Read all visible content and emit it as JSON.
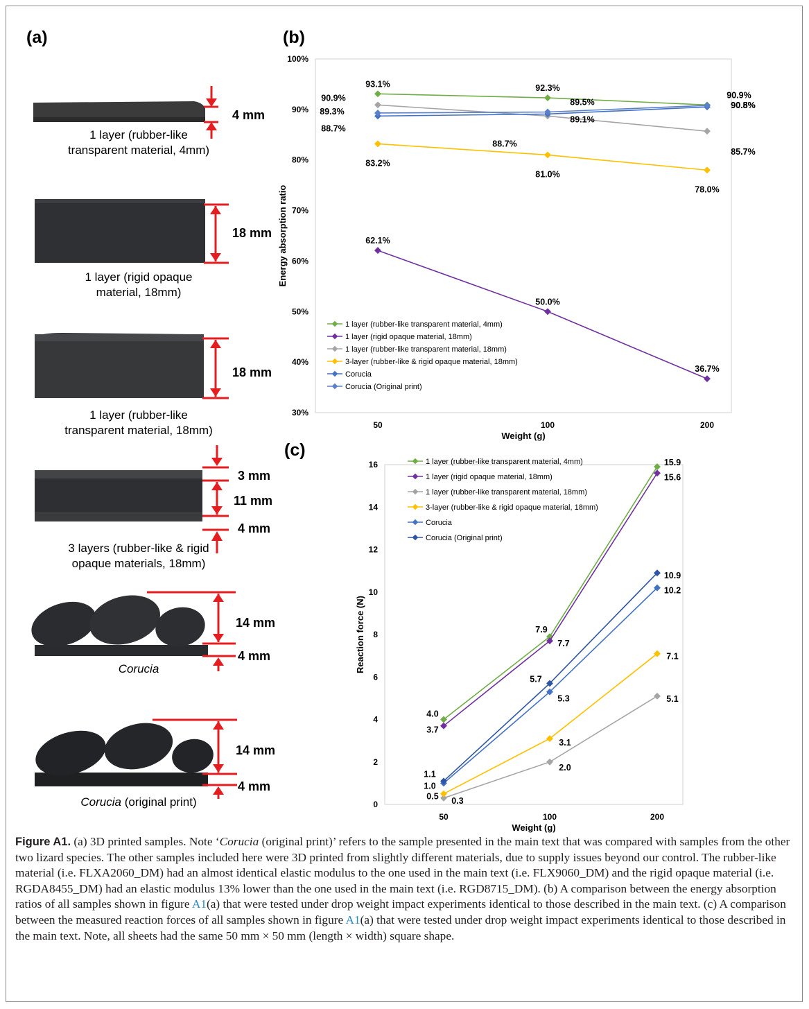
{
  "panels": {
    "a": "(a)",
    "b": "(b)",
    "c": "(c)"
  },
  "samples": [
    {
      "caption_lines": [
        "1 layer (rubber-like",
        "transparent material, 4mm)"
      ],
      "dims": [
        "4 mm"
      ]
    },
    {
      "caption_lines": [
        "1 layer (rigid opaque",
        "material, 18mm)"
      ],
      "dims": [
        "18 mm"
      ]
    },
    {
      "caption_lines": [
        "1 layer (rubber-like",
        "transparent material, 18mm)"
      ],
      "dims": [
        "18 mm"
      ]
    },
    {
      "caption_lines": [
        "3 layers (rubber-like & rigid",
        "opaque materials, 18mm)"
      ],
      "dims": [
        "3 mm",
        "11 mm",
        "4 mm"
      ]
    },
    {
      "caption_lines": [
        "Corucia"
      ],
      "dims": [
        "14 mm",
        "4 mm"
      ]
    },
    {
      "caption_parts": [
        "Corucia",
        " (original print)"
      ],
      "dims": [
        "14 mm",
        "4 mm"
      ]
    }
  ],
  "chart_data": [
    {
      "type": "line",
      "panel": "(b)",
      "xlabel": "Weight (g)",
      "ylabel": "Energy absorption ratio",
      "categories": [
        "50",
        "100",
        "200"
      ],
      "ylim": [
        30,
        100
      ],
      "yticks": [
        "30%",
        "40%",
        "50%",
        "60%",
        "70%",
        "80%",
        "90%",
        "100%"
      ],
      "legend_position": "bottom-left",
      "series": [
        {
          "name": "1 layer (rubber-like transparent material, 4mm)",
          "color": "#70ad47",
          "values": [
            93.1,
            92.3,
            90.9
          ],
          "labels": [
            "93.1%",
            "92.3%",
            "90.9%"
          ]
        },
        {
          "name": "1 layer (rigid opaque material, 18mm)",
          "color": "#7030a0",
          "values": [
            62.1,
            50.0,
            36.7
          ],
          "labels": [
            "62.1%",
            "50.0%",
            "36.7%"
          ]
        },
        {
          "name": "1 layer (rubber-like transparent material, 18mm)",
          "color": "#a5a5a5",
          "values": [
            90.9,
            88.7,
            85.7
          ],
          "labels": [
            "90.9%",
            "88.7%",
            "85.7%"
          ]
        },
        {
          "name": "3-layer (rubber-like & rigid opaque material, 18mm)",
          "color": "#ffc000",
          "values": [
            83.2,
            81.0,
            78.0
          ],
          "labels": [
            "83.2%",
            "81.0%",
            "78.0%"
          ]
        },
        {
          "name": "Corucia",
          "color": "#4472c4",
          "values": [
            88.7,
            89.1,
            90.5
          ],
          "labels": [
            "88.7%",
            "89.1%",
            "90.5%"
          ]
        },
        {
          "name": "Corucia (Original print)",
          "color": "#5b7fc8",
          "values": [
            89.3,
            89.5,
            90.8
          ],
          "labels": [
            "89.3%",
            "89.5%",
            "90.8%"
          ]
        }
      ]
    },
    {
      "type": "line",
      "panel": "(c)",
      "xlabel": "Weight (g)",
      "ylabel": "Reaction force (N)",
      "categories": [
        "50",
        "100",
        "200"
      ],
      "ylim": [
        0,
        16
      ],
      "yticks": [
        "0",
        "2",
        "4",
        "6",
        "8",
        "10",
        "12",
        "14",
        "16"
      ],
      "legend_position": "top-left",
      "series": [
        {
          "name": "1 layer (rubber-like transparent material, 4mm)",
          "color": "#70ad47",
          "values": [
            4.0,
            7.9,
            15.9
          ],
          "labels": [
            "4.0",
            "7.9",
            "15.9"
          ]
        },
        {
          "name": "1 layer (rigid opaque material, 18mm)",
          "color": "#7030a0",
          "values": [
            3.7,
            7.7,
            15.6
          ],
          "labels": [
            "3.7",
            "7.7",
            "15.6"
          ]
        },
        {
          "name": "1 layer (rubber-like transparent material, 18mm)",
          "color": "#a5a5a5",
          "values": [
            0.3,
            2.0,
            5.1
          ],
          "labels": [
            "0.3",
            "2.0",
            "5.1"
          ]
        },
        {
          "name": "3-layer (rubber-like & rigid opaque material, 18mm)",
          "color": "#ffc000",
          "values": [
            0.5,
            3.1,
            7.1
          ],
          "labels": [
            "0.5",
            "3.1",
            "7.1"
          ]
        },
        {
          "name": "Corucia",
          "color": "#4472c4",
          "values": [
            1.0,
            5.3,
            10.2
          ],
          "labels": [
            "1.0",
            "5.3",
            "10.2"
          ]
        },
        {
          "name": "Corucia (Original print)",
          "color": "#2e55a4",
          "values": [
            1.1,
            5.7,
            10.9
          ],
          "labels": [
            "1.1",
            "5.7",
            "10.9"
          ]
        }
      ]
    }
  ],
  "caption": {
    "label": "Figure A1.",
    "t1": " (a) 3D printed samples. Note ‘",
    "t1i": "Corucia",
    "t2": " (original print)’ refers to the sample presented in the main text that was compared with samples from the other two lizard species. The other samples included here were 3D printed from slightly different materials, due to supply issues beyond our control. The rubber-like material (i.e. FLXA2060_DM) had an almost identical elastic modulus to the one used in the main text (i.e. FLX9060_DM) and the rigid opaque material (i.e. RGDA8455_DM) had an elastic modulus 13% lower than the one used in the main text (i.e. RGD8715_DM). (b) A comparison between the energy absorption ratios of all samples shown in figure ",
    "ref1": "A1",
    "t3": "(a) that were tested under drop weight impact experiments identical to those described in the main text. (c) A comparison between the measured reaction forces of all samples shown in figure ",
    "ref2": "A1",
    "t4": "(a) that were tested under drop weight impact experiments identical to those described in the main text. Note, all sheets had the same 50 mm × 50 mm (length × width) square shape."
  }
}
